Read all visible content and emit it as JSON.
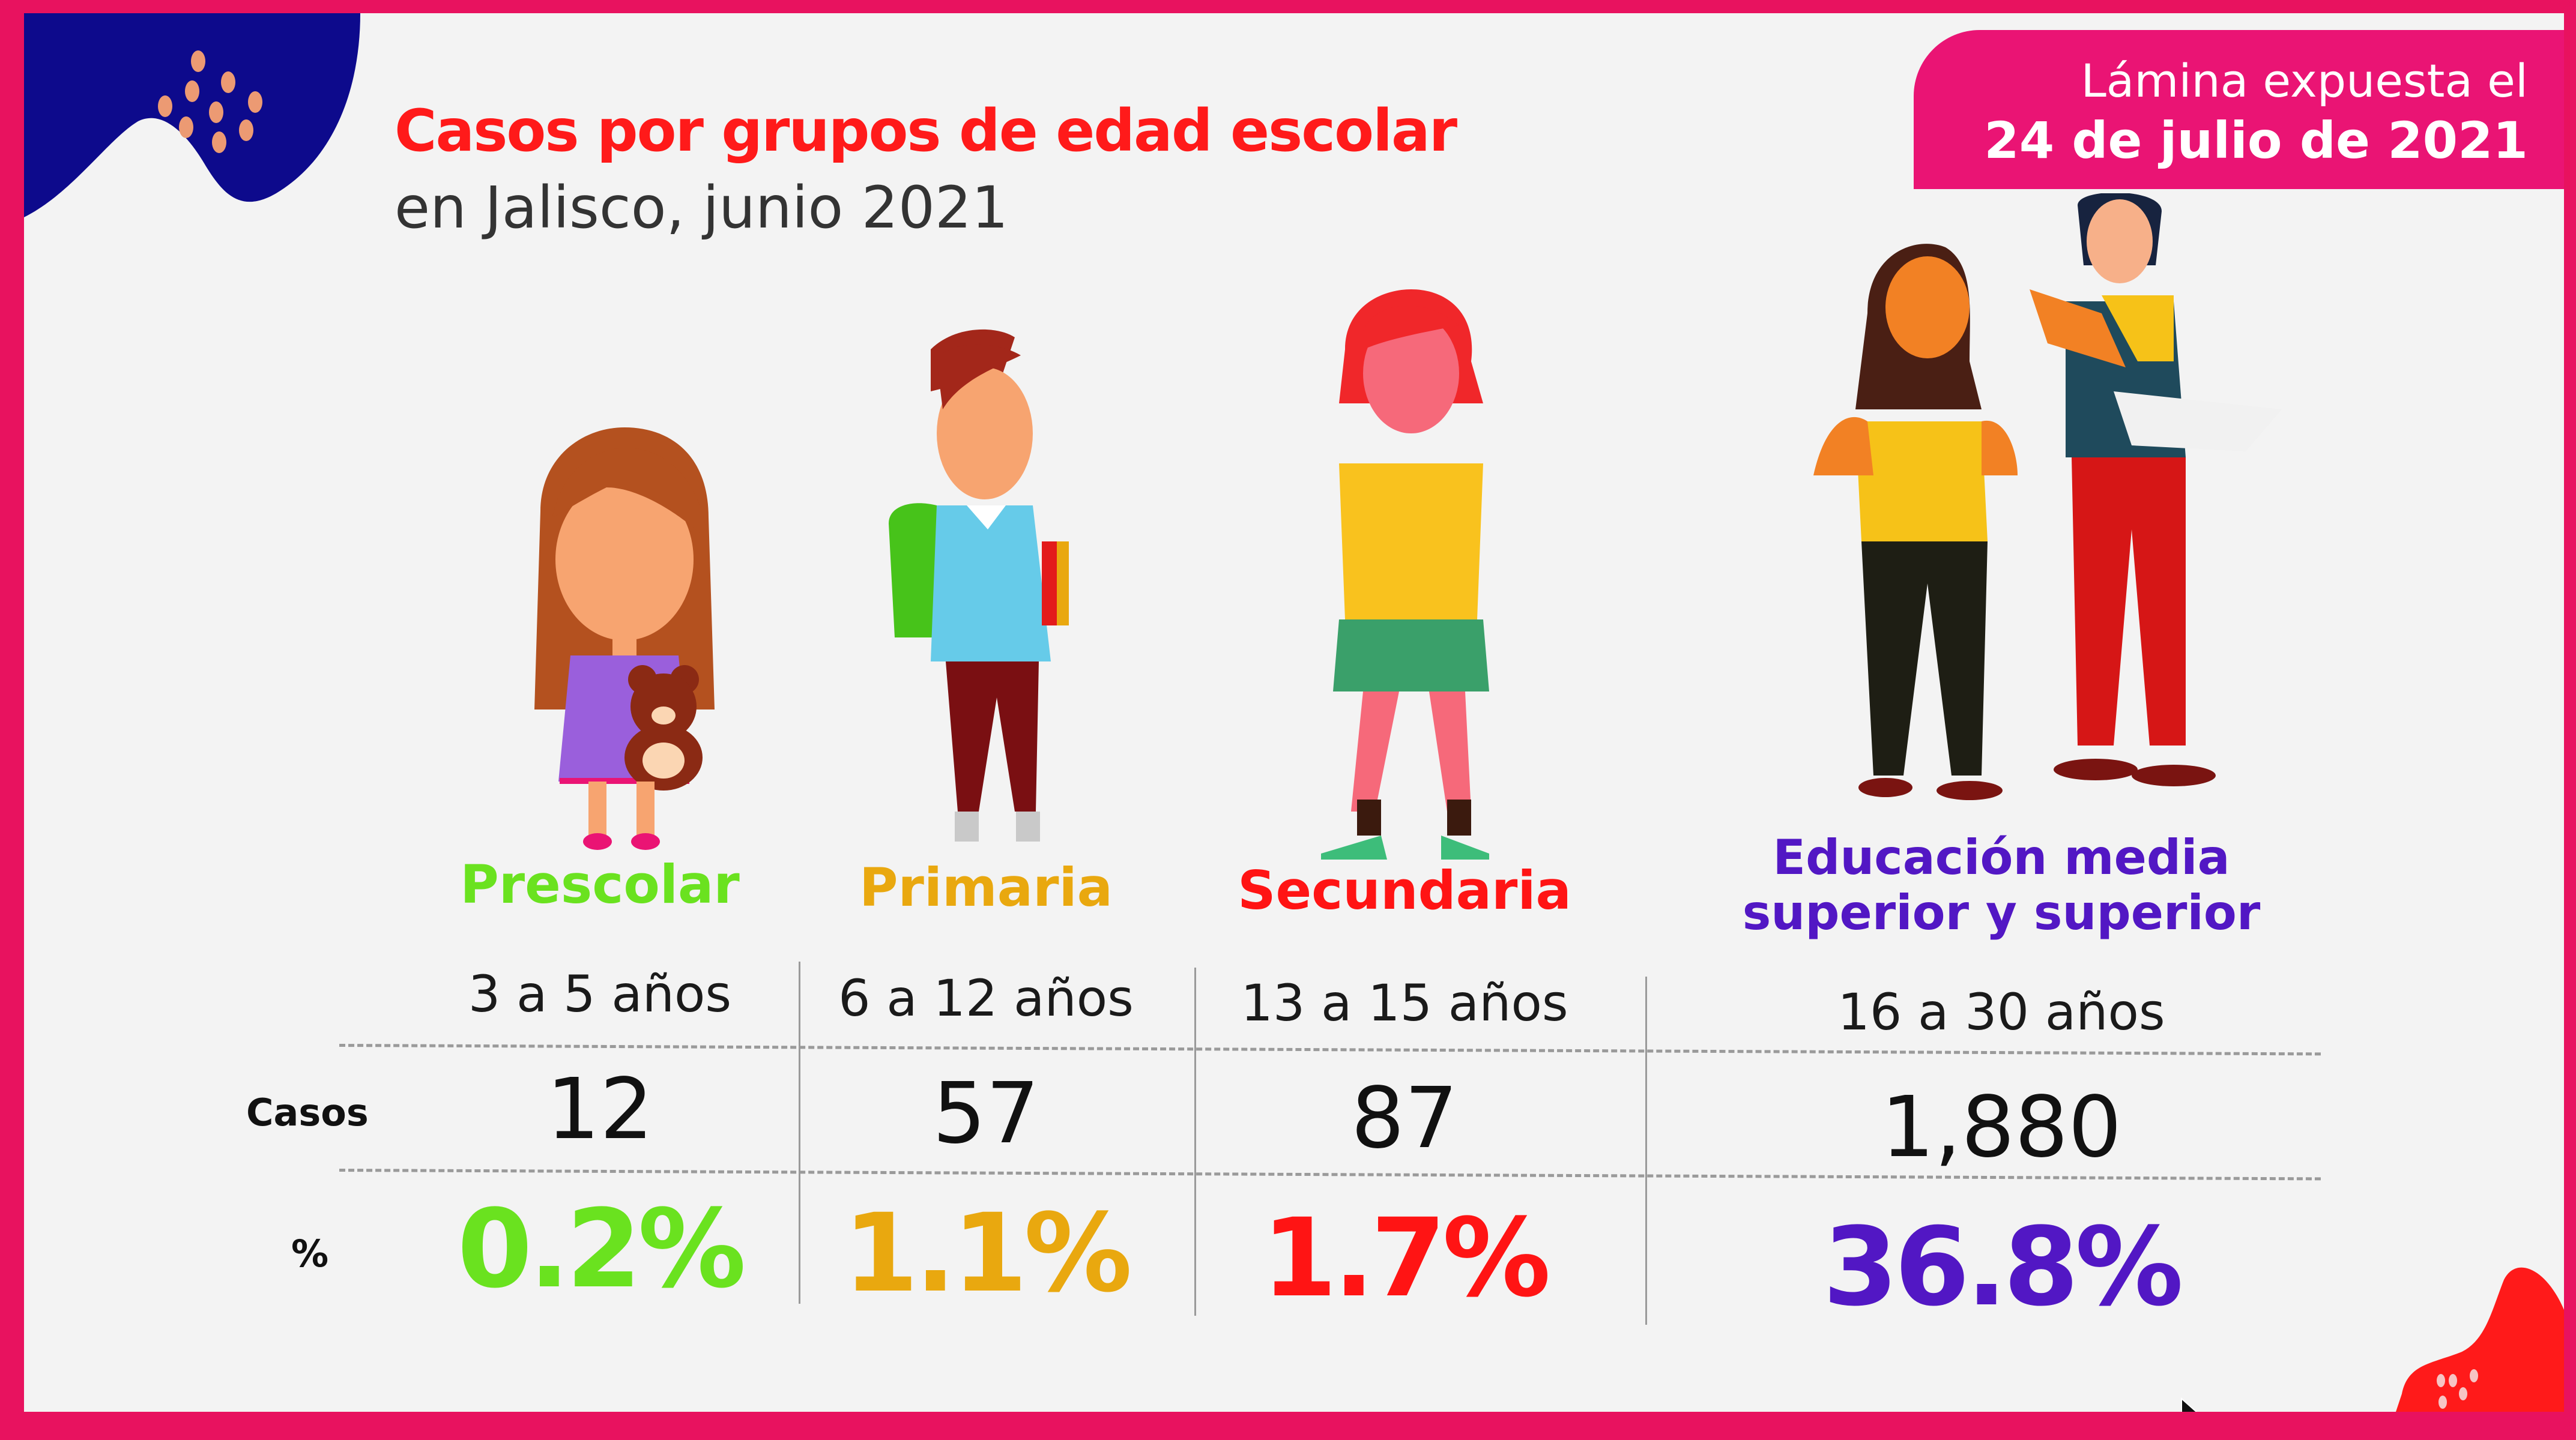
{
  "header": {
    "title": "Casos por grupos de edad escolar",
    "subtitle": "en Jalisco, junio 2021"
  },
  "badge": {
    "line1": "Lámina expuesta el",
    "line2": "24 de julio de 2021",
    "color": "#ea1474"
  },
  "row_labels": {
    "cases": "Casos",
    "percent": "%"
  },
  "groups": [
    {
      "name": "Prescolar",
      "name_line2": "",
      "ages": "3 a 5 años",
      "cases": "12",
      "percent": "0.2%",
      "color": "#6ae21f"
    },
    {
      "name": "Primaria",
      "name_line2": "",
      "ages": "6 a 12 años",
      "cases": "57",
      "percent": "1.1%",
      "color": "#e9a80f"
    },
    {
      "name": "Secundaria",
      "name_line2": "",
      "ages": "13 a 15 años",
      "cases": "87",
      "percent": "1.7%",
      "color": "#ff1414"
    },
    {
      "name": "Educación media",
      "name_line2": "superior y superior",
      "ages": "16 a 30 años",
      "cases": "1,880",
      "percent": "36.8%",
      "color": "#5217c4"
    }
  ],
  "illustrations": [
    "girl-with-teddy-bear",
    "boy-with-backpack",
    "girl-in-uniform",
    "two-students-reading"
  ]
}
